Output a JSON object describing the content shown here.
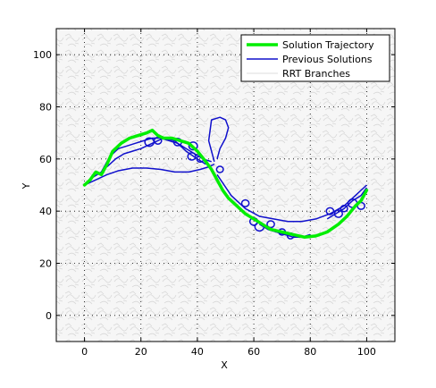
{
  "chart_data": {
    "type": "line",
    "title": "",
    "xlabel": "X",
    "ylabel": "Y",
    "xlim": [
      -10,
      110
    ],
    "ylim": [
      -10,
      110
    ],
    "xticks": [
      0,
      20,
      40,
      60,
      80,
      100
    ],
    "yticks": [
      0,
      20,
      40,
      60,
      80,
      100
    ],
    "grid": true,
    "legend_position": "top-right",
    "series": [
      {
        "name": "Solution Trajectory",
        "color": "#00ee00",
        "width": "thick",
        "x": [
          0,
          2,
          4,
          6,
          8,
          10,
          13,
          16,
          19,
          22,
          24,
          26,
          28,
          31,
          34,
          37,
          40,
          43,
          45,
          47,
          49,
          51,
          54,
          57,
          60,
          63,
          66,
          70,
          74,
          78,
          82,
          86,
          90,
          93,
          96,
          98,
          100
        ],
        "y": [
          50,
          52,
          55,
          54,
          58,
          63,
          66,
          68,
          69,
          70,
          71,
          69,
          68,
          68,
          67,
          66,
          63,
          59,
          56,
          52,
          48,
          45,
          42,
          39,
          37,
          35,
          33,
          32,
          31,
          30,
          30.5,
          32,
          35,
          38,
          42,
          44,
          48
        ]
      },
      {
        "name": "Previous Solutions",
        "color": "#1010cc",
        "width": "thin",
        "paths": [
          {
            "x": [
              0,
              4,
              8,
              12,
              17,
              22,
              27,
              32,
              37,
              41,
              44,
              46
            ],
            "y": [
              50,
              52,
              54,
              55.5,
              56.5,
              56.5,
              56,
              55,
              55,
              56,
              57,
              58
            ]
          },
          {
            "x": [
              3,
              6,
              9,
              12,
              15,
              18,
              21,
              24,
              27,
              30,
              33,
              36,
              39,
              42,
              45
            ],
            "y": [
              53,
              55,
              61,
              64,
              65,
              66,
              67,
              68,
              68,
              67,
              66,
              64,
              62,
              60,
              59
            ]
          },
          {
            "x": [
              8,
              11,
              14,
              17,
              20,
              24,
              28,
              32,
              36,
              40,
              43
            ],
            "y": [
              57,
              60,
              62,
              63,
              64,
              66,
              68,
              67,
              63,
              60,
              58
            ]
          },
          {
            "x": [
              46,
              44,
              45,
              48,
              50,
              51,
              50,
              48,
              47
            ],
            "y": [
              59,
              67,
              75,
              76,
              75,
              72,
              68,
              64,
              60
            ]
          },
          {
            "x": [
              47,
              52,
              57,
              62,
              67,
              72,
              77,
              82,
              87,
              92,
              96,
              100
            ],
            "y": [
              54,
              46,
              41,
              38,
              37,
              36,
              36,
              37,
              39,
              42,
              46,
              50
            ]
          },
          {
            "x": [
              62,
              65,
              68,
              71,
              74,
              77,
              80
            ],
            "y": [
              35,
              33,
              32,
              31,
              30,
              30,
              31
            ]
          },
          {
            "x": [
              86,
              89,
              92,
              95,
              98,
              100
            ],
            "y": [
              37,
              39,
              41,
              44,
              46,
              49
            ]
          }
        ],
        "loops": [
          {
            "x": 23,
            "y": 66.5,
            "r": 1.6
          },
          {
            "x": 26,
            "y": 67,
            "r": 1.3
          },
          {
            "x": 33,
            "y": 66.5,
            "r": 1.4
          },
          {
            "x": 38.5,
            "y": 65,
            "r": 1.5
          },
          {
            "x": 38,
            "y": 61,
            "r": 1.4
          },
          {
            "x": 41,
            "y": 60,
            "r": 1.2
          },
          {
            "x": 48,
            "y": 56,
            "r": 1.2
          },
          {
            "x": 57,
            "y": 43,
            "r": 1.3
          },
          {
            "x": 60,
            "y": 36,
            "r": 1.4
          },
          {
            "x": 62,
            "y": 34,
            "r": 1.6
          },
          {
            "x": 66,
            "y": 35,
            "r": 1.3
          },
          {
            "x": 70,
            "y": 32,
            "r": 1.2
          },
          {
            "x": 73,
            "y": 30.5,
            "r": 1.1
          },
          {
            "x": 87,
            "y": 40,
            "r": 1.3
          },
          {
            "x": 90,
            "y": 39,
            "r": 1.4
          },
          {
            "x": 92,
            "y": 41,
            "r": 1.2
          },
          {
            "x": 95,
            "y": 43,
            "r": 1.6
          },
          {
            "x": 98,
            "y": 42,
            "r": 1.3
          }
        ]
      },
      {
        "name": "RRT Branches",
        "color": "#dddddd",
        "width": "thin"
      }
    ]
  }
}
